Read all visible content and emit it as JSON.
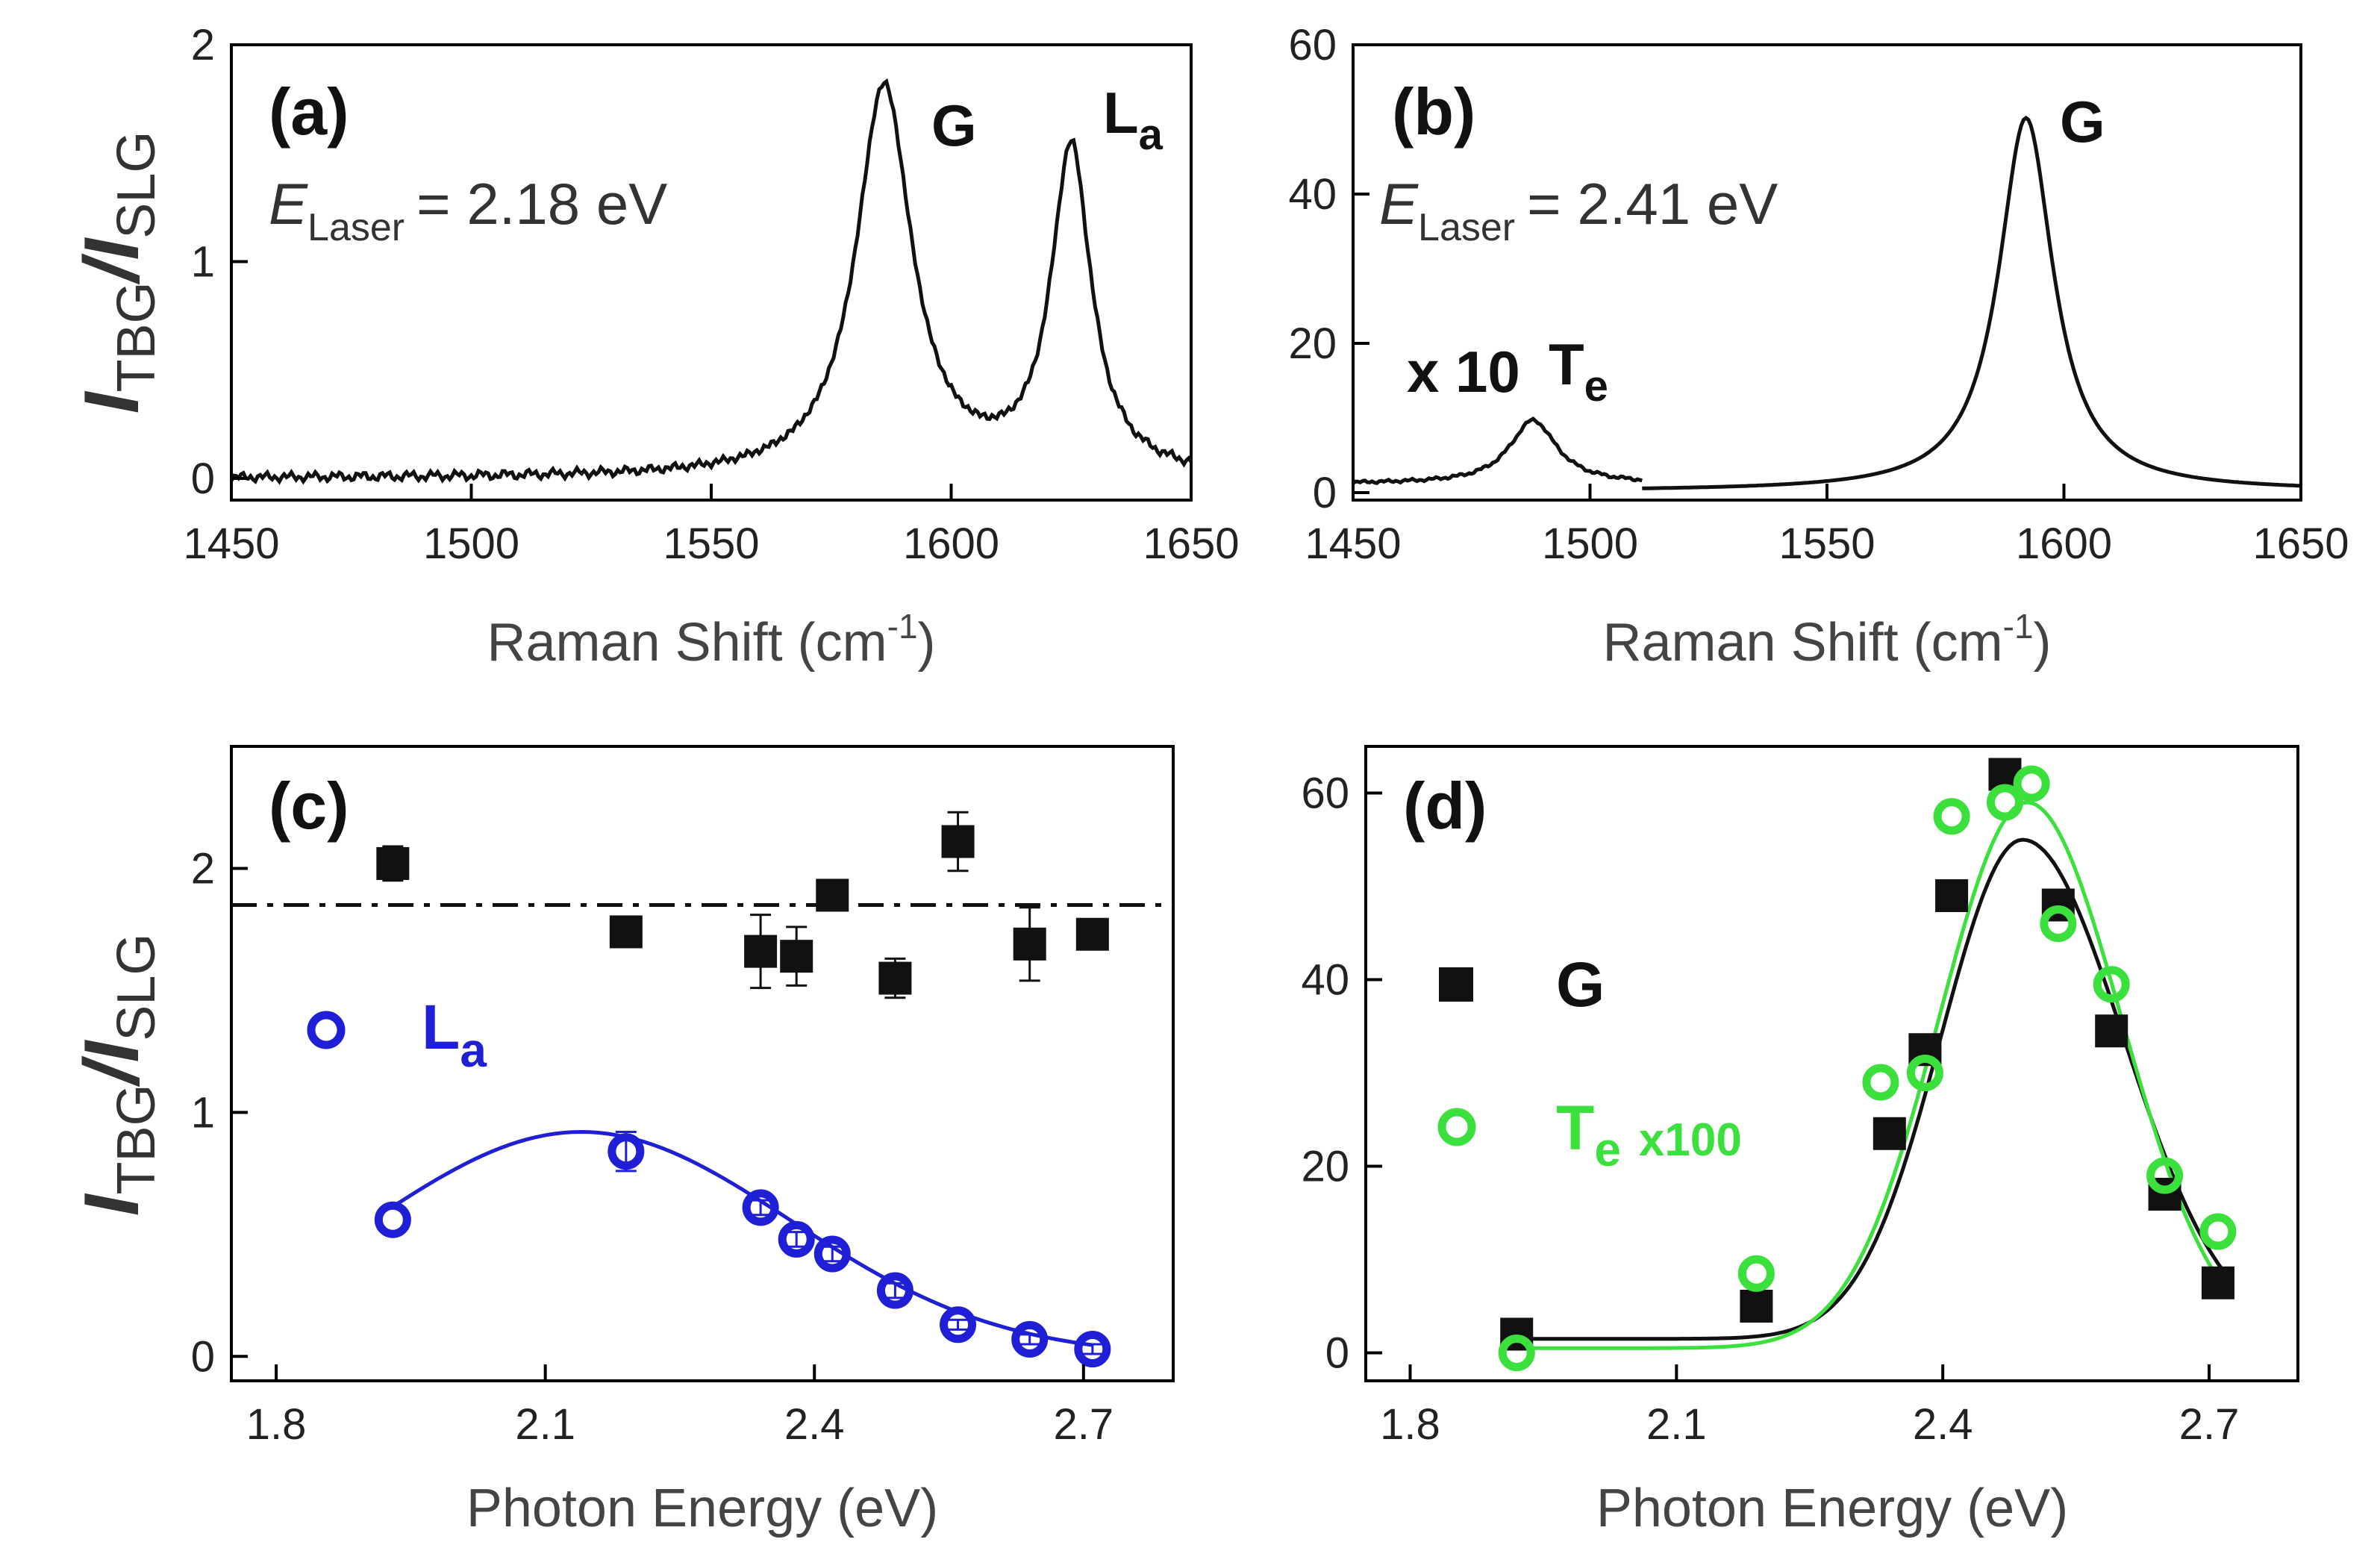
{
  "chart_data": [
    {
      "panel": "(a)",
      "type": "line",
      "title": "",
      "annotation": {
        "symbol": "E",
        "subscript": "Laser",
        "value": "= 2.18 eV"
      },
      "xlabel": "Raman Shift (cm",
      "xlabel_sup": "-1",
      "xlabel_end": ")",
      "ylabel": {
        "main": "I",
        "sub1": "TBG",
        "mid": "/I",
        "sub2": "SLG"
      },
      "xlim": [
        1450,
        1650
      ],
      "ylim": [
        -0.1,
        2
      ],
      "xticks": [
        "1450",
        "1500",
        "1550",
        "1600",
        "1650"
      ],
      "yticks": [
        "0",
        "1",
        "2"
      ],
      "peaks": [
        {
          "name": "G",
          "sub": "",
          "center": 1586,
          "height": 1.8,
          "width": 7
        },
        {
          "name": "L",
          "sub": "a",
          "center": 1625,
          "height": 1.5,
          "width": 5
        }
      ],
      "baseline": 0.0
    },
    {
      "panel": "(b)",
      "type": "line",
      "title": "",
      "annotation": {
        "symbol": "E",
        "subscript": "Laser",
        "value": "= 2.41 eV"
      },
      "xlabel": "Raman Shift (cm",
      "xlabel_sup": "-1",
      "xlabel_end": ")",
      "ylabel": null,
      "xlim": [
        1450,
        1650
      ],
      "ylim": [
        -1,
        60
      ],
      "xticks": [
        "1450",
        "1500",
        "1550",
        "1600",
        "1650"
      ],
      "yticks": [
        "0",
        "20",
        "40",
        "60"
      ],
      "multiplier_label": "x 10",
      "peaks": [
        {
          "name": "T",
          "sub": "e",
          "center": 1488,
          "height": 8.5,
          "width": 6,
          "segment": [
            1450,
            1511
          ]
        },
        {
          "name": "G",
          "sub": "",
          "center": 1592,
          "height": 50,
          "width": 7,
          "segment": [
            1511,
            1650
          ]
        }
      ]
    },
    {
      "panel": "(c)",
      "type": "scatter",
      "xlabel": "Photon Energy (eV)",
      "ylabel": {
        "main": "I",
        "sub1": "TBG",
        "mid": "/I",
        "sub2": "SLG"
      },
      "xlim": [
        1.75,
        2.8
      ],
      "ylim": [
        -0.1,
        2.5
      ],
      "xticks": [
        "1.8",
        "2.1",
        "2.4",
        "2.7"
      ],
      "yticks": [
        "0",
        "1",
        "2"
      ],
      "reference_line": 1.85,
      "series": [
        {
          "name": "G",
          "color": "#111111",
          "marker": "square",
          "x": [
            1.93,
            2.19,
            2.34,
            2.38,
            2.42,
            2.49,
            2.56,
            2.64,
            2.71
          ],
          "y": [
            2.02,
            1.74,
            1.66,
            1.64,
            1.89,
            1.55,
            2.11,
            1.69,
            1.73
          ],
          "err": [
            0.07,
            0.05,
            0.15,
            0.12,
            0.05,
            0.08,
            0.12,
            0.15,
            0.06
          ]
        },
        {
          "name": "L",
          "sub": "a",
          "color": "#1f1fd6",
          "marker": "circle",
          "x": [
            1.93,
            2.19,
            2.34,
            2.38,
            2.42,
            2.49,
            2.56,
            2.64,
            2.71
          ],
          "y": [
            0.56,
            0.84,
            0.61,
            0.48,
            0.42,
            0.27,
            0.13,
            0.07,
            0.03
          ],
          "err": [
            0.0,
            0.08,
            0.03,
            0.03,
            0.03,
            0.03,
            0.02,
            0.02,
            0.02
          ],
          "fit": {
            "peak_x": 2.14,
            "peak_y": 0.92
          }
        }
      ]
    },
    {
      "panel": "(d)",
      "type": "scatter",
      "xlabel": "Photon Energy (eV)",
      "ylabel": null,
      "xlim": [
        1.75,
        2.8
      ],
      "ylim": [
        -3,
        65
      ],
      "xticks": [
        "1.8",
        "2.1",
        "2.4",
        "2.7"
      ],
      "yticks": [
        "0",
        "20",
        "40",
        "60"
      ],
      "series": [
        {
          "name": "G",
          "color": "#111111",
          "marker": "square",
          "x": [
            1.92,
            2.19,
            2.34,
            2.38,
            2.41,
            2.47,
            2.53,
            2.59,
            2.65,
            2.71
          ],
          "y": [
            2,
            5,
            23.5,
            32.5,
            49,
            62,
            48,
            34.5,
            17,
            7.5
          ],
          "fit_peak": 55
        },
        {
          "name": "T",
          "sub": "e",
          "suffix": "x100",
          "color": "#3ce03c",
          "marker": "circle",
          "x": [
            1.92,
            2.19,
            2.33,
            2.38,
            2.41,
            2.47,
            2.5,
            2.53,
            2.59,
            2.65,
            2.71
          ],
          "y": [
            0,
            8.5,
            29,
            30,
            57.5,
            59,
            61,
            46,
            39.5,
            19,
            13
          ],
          "fit_peak": 59
        }
      ]
    }
  ]
}
